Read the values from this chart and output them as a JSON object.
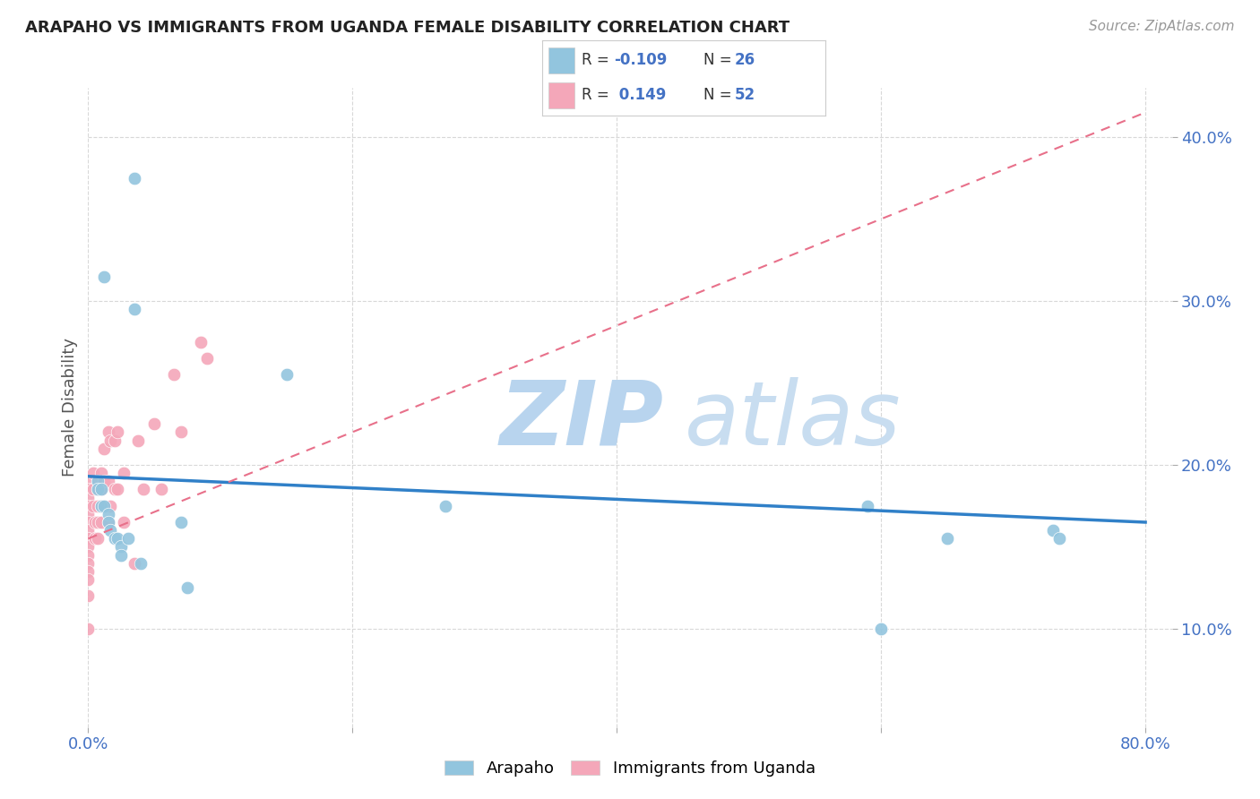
{
  "title": "ARAPAHO VS IMMIGRANTS FROM UGANDA FEMALE DISABILITY CORRELATION CHART",
  "source": "Source: ZipAtlas.com",
  "ylabel": "Female Disability",
  "blue_color": "#92c5de",
  "pink_color": "#f4a7b9",
  "blue_line_color": "#3080c8",
  "pink_line_color": "#e8708a",
  "watermark_zip": "ZIP",
  "watermark_atlas": "atlas",
  "xlim": [
    0.0,
    0.82
  ],
  "ylim": [
    0.04,
    0.43
  ],
  "x_ticks": [
    0.0,
    0.2,
    0.4,
    0.6,
    0.8
  ],
  "y_ticks": [
    0.1,
    0.2,
    0.3,
    0.4
  ],
  "arapaho_x": [
    0.035,
    0.035,
    0.012,
    0.007,
    0.007,
    0.01,
    0.01,
    0.012,
    0.015,
    0.015,
    0.017,
    0.02,
    0.022,
    0.025,
    0.025,
    0.03,
    0.04,
    0.07,
    0.075,
    0.15,
    0.27,
    0.59,
    0.6,
    0.65,
    0.73,
    0.735
  ],
  "arapaho_y": [
    0.375,
    0.295,
    0.315,
    0.19,
    0.185,
    0.185,
    0.175,
    0.175,
    0.17,
    0.165,
    0.16,
    0.155,
    0.155,
    0.15,
    0.145,
    0.155,
    0.14,
    0.165,
    0.125,
    0.255,
    0.175,
    0.175,
    0.1,
    0.155,
    0.16,
    0.155
  ],
  "uganda_x": [
    0.0,
    0.0,
    0.0,
    0.0,
    0.0,
    0.0,
    0.0,
    0.0,
    0.0,
    0.0,
    0.0,
    0.0,
    0.0,
    0.0,
    0.0,
    0.004,
    0.004,
    0.004,
    0.005,
    0.005,
    0.007,
    0.007,
    0.007,
    0.007,
    0.007,
    0.01,
    0.01,
    0.01,
    0.01,
    0.012,
    0.012,
    0.012,
    0.015,
    0.015,
    0.015,
    0.017,
    0.017,
    0.02,
    0.02,
    0.022,
    0.022,
    0.027,
    0.027,
    0.035,
    0.038,
    0.042,
    0.05,
    0.055,
    0.065,
    0.07,
    0.085,
    0.09
  ],
  "uganda_y": [
    0.19,
    0.185,
    0.18,
    0.175,
    0.17,
    0.165,
    0.16,
    0.155,
    0.15,
    0.145,
    0.14,
    0.135,
    0.13,
    0.12,
    0.1,
    0.195,
    0.185,
    0.175,
    0.165,
    0.155,
    0.19,
    0.185,
    0.175,
    0.165,
    0.155,
    0.195,
    0.185,
    0.175,
    0.165,
    0.21,
    0.19,
    0.175,
    0.22,
    0.19,
    0.165,
    0.215,
    0.175,
    0.215,
    0.185,
    0.22,
    0.185,
    0.195,
    0.165,
    0.14,
    0.215,
    0.185,
    0.225,
    0.185,
    0.255,
    0.22,
    0.275,
    0.265
  ],
  "blue_trend_x": [
    0.0,
    0.8
  ],
  "blue_trend_y": [
    0.193,
    0.165
  ],
  "pink_trend_x": [
    0.0,
    0.8
  ],
  "pink_trend_y": [
    0.155,
    0.415
  ],
  "legend_r_blue": "-0.109",
  "legend_n_blue": "26",
  "legend_r_pink": "0.149",
  "legend_n_pink": "52",
  "grid_color": "#d8d8d8",
  "grid_style": "--"
}
